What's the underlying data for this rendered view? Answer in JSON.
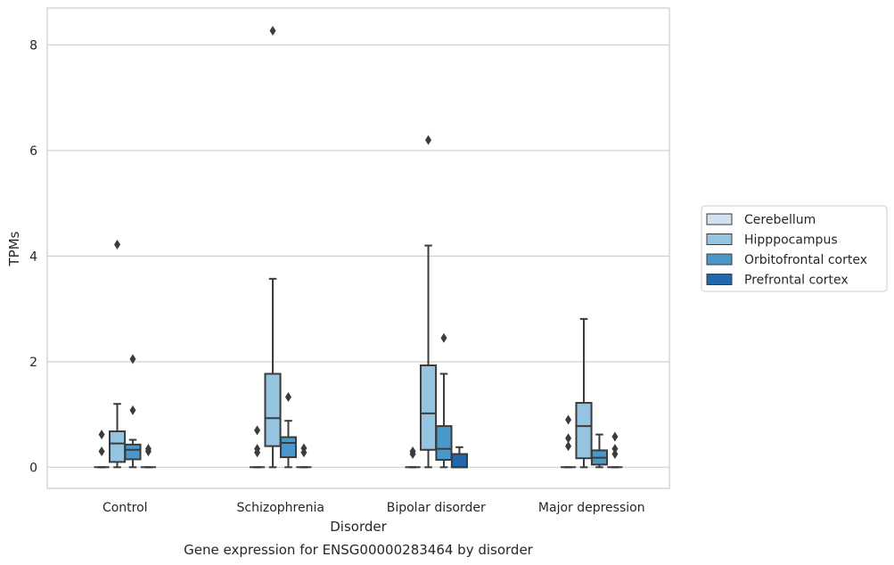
{
  "chart_data": {
    "type": "boxplot",
    "caption": "Gene expression for ENSG00000283464 by disorder",
    "xlabel": "Disorder",
    "ylabel": "TPMs",
    "ylim": [
      -0.4,
      8.7
    ],
    "yticks": [
      0,
      2,
      4,
      6,
      8
    ],
    "grid": "horizontal",
    "legend_placement": "right",
    "categories": [
      "Control",
      "Schizophrenia",
      "Bipolar disorder",
      "Major depression"
    ],
    "series": [
      {
        "name": "Cerebellum",
        "color": "#d0e1f2",
        "boxes": [
          {
            "min": 0,
            "q1": 0,
            "median": 0,
            "q3": 0,
            "max": 0,
            "outliers": [
              0.3,
              0.62
            ]
          },
          {
            "min": 0,
            "q1": 0,
            "median": 0,
            "q3": 0,
            "max": 0,
            "outliers": [
              0.28,
              0.35,
              0.7
            ]
          },
          {
            "min": 0,
            "q1": 0,
            "median": 0,
            "q3": 0,
            "max": 0,
            "outliers": [
              0.25,
              0.3
            ]
          },
          {
            "min": 0,
            "q1": 0,
            "median": 0,
            "q3": 0,
            "max": 0,
            "outliers": [
              0.4,
              0.55,
              0.9
            ]
          }
        ]
      },
      {
        "name": "Hipppocampus",
        "color": "#94c4df",
        "boxes": [
          {
            "min": 0,
            "q1": 0.1,
            "median": 0.45,
            "q3": 0.68,
            "max": 1.2,
            "outliers": [
              4.22
            ]
          },
          {
            "min": 0,
            "q1": 0.4,
            "median": 0.93,
            "q3": 1.77,
            "max": 3.57,
            "outliers": [
              8.27
            ]
          },
          {
            "min": 0,
            "q1": 0.33,
            "median": 1.02,
            "q3": 1.93,
            "max": 4.2,
            "outliers": [
              6.2
            ]
          },
          {
            "min": 0,
            "q1": 0.17,
            "median": 0.78,
            "q3": 1.22,
            "max": 2.81,
            "outliers": []
          }
        ]
      },
      {
        "name": "Orbitofrontal cortex",
        "color": "#4a98c9",
        "boxes": [
          {
            "min": 0,
            "q1": 0.15,
            "median": 0.33,
            "q3": 0.43,
            "max": 0.52,
            "outliers": [
              1.08,
              2.05
            ]
          },
          {
            "min": 0,
            "q1": 0.19,
            "median": 0.46,
            "q3": 0.57,
            "max": 0.88,
            "outliers": [
              1.33
            ]
          },
          {
            "min": 0,
            "q1": 0.14,
            "median": 0.35,
            "q3": 0.78,
            "max": 1.77,
            "outliers": [
              2.45
            ]
          },
          {
            "min": 0,
            "q1": 0.05,
            "median": 0.18,
            "q3": 0.32,
            "max": 0.62,
            "outliers": []
          }
        ]
      },
      {
        "name": "Prefrontal cortex",
        "color": "#2266ac",
        "boxes": [
          {
            "min": 0,
            "q1": 0,
            "median": 0,
            "q3": 0,
            "max": 0,
            "outliers": [
              0.3,
              0.35
            ]
          },
          {
            "min": 0,
            "q1": 0,
            "median": 0,
            "q3": 0,
            "max": 0,
            "outliers": [
              0.28,
              0.36
            ]
          },
          {
            "min": 0,
            "q1": 0,
            "median": 0,
            "q3": 0.25,
            "max": 0.38,
            "outliers": []
          },
          {
            "min": 0,
            "q1": 0,
            "median": 0,
            "q3": 0,
            "max": 0,
            "outliers": [
              0.25,
              0.35,
              0.58
            ]
          }
        ]
      }
    ]
  }
}
